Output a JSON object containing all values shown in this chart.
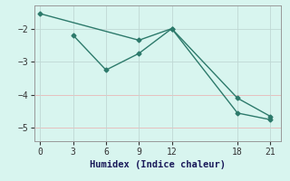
{
  "line1_x": [
    0,
    9,
    12,
    18,
    21
  ],
  "line1_y": [
    -1.55,
    -2.35,
    -2.0,
    -4.1,
    -4.65
  ],
  "line2_x": [
    3,
    6,
    9,
    12,
    18,
    21
  ],
  "line2_y": [
    -2.2,
    -3.25,
    -2.75,
    -2.0,
    -4.55,
    -4.75
  ],
  "line_color": "#2d7a6b",
  "marker": "D",
  "markersize": 2.5,
  "linewidth": 1.0,
  "xlabel": "Humidex (Indice chaleur)",
  "xlim": [
    -0.5,
    22
  ],
  "ylim": [
    -5.4,
    -1.3
  ],
  "yticks": [
    -5,
    -4,
    -3,
    -2
  ],
  "xticks": [
    0,
    3,
    6,
    9,
    12,
    18,
    21
  ],
  "bg_color": "#d8f5ef",
  "xlabel_fontsize": 7.5,
  "tick_fontsize": 7,
  "grid_color": "#c0d8d4",
  "hgrid_red_color": "#e8b8b8"
}
